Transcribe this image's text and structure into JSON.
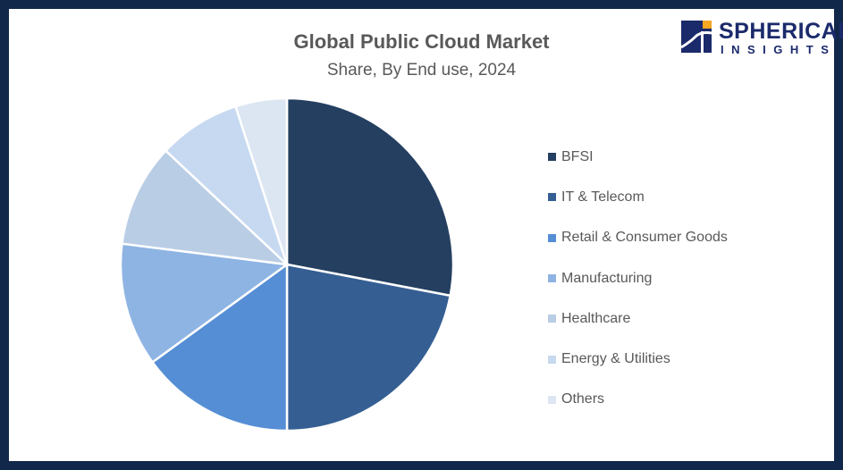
{
  "chart_data": {
    "type": "pie",
    "title": "Global Public Cloud Market",
    "subtitle": "Share, By End use, 2024",
    "legend_position": "right",
    "categories": [
      "BFSI",
      "IT & Telecom",
      "Retail & Consumer Goods",
      "Manufacturing",
      "Healthcare",
      "Energy & Utilities",
      "Others"
    ],
    "values": [
      28,
      22,
      15,
      12,
      10,
      8,
      5
    ],
    "colors": [
      "#243f60",
      "#355f93",
      "#558ed5",
      "#8eb4e3",
      "#b9cde5",
      "#c6d9f1",
      "#dce6f2"
    ]
  },
  "logo": {
    "line1": "SPHERICAL",
    "line2": "INSIGHTS",
    "colors": {
      "navy": "#1b2a6b",
      "accent": "#f5a623"
    }
  }
}
